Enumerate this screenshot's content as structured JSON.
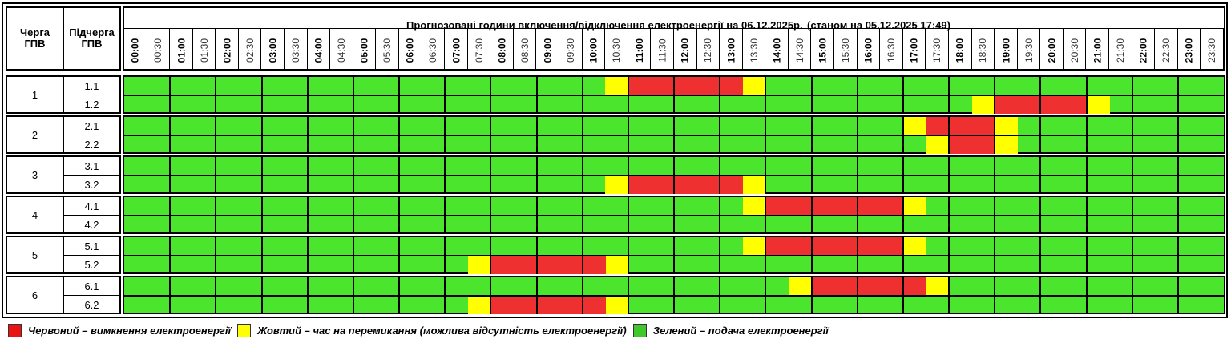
{
  "header": {
    "queue_label": "Черга ГПВ",
    "subqueue_label": "Підчерга ГПВ",
    "title": "Прогнозовані години включення/відключення електроенергії на 06.12.2025р.",
    "as_of": "(станом на 05.12.2025 17:49)"
  },
  "time_slots": [
    "00:00",
    "00:30",
    "01:00",
    "01:30",
    "02:00",
    "02:30",
    "03:00",
    "03:30",
    "04:00",
    "04:30",
    "05:00",
    "05:30",
    "06:00",
    "06:30",
    "07:00",
    "07:30",
    "08:00",
    "08:30",
    "09:00",
    "09:30",
    "10:00",
    "10:30",
    "11:00",
    "11:30",
    "12:00",
    "12:30",
    "13:00",
    "13:30",
    "14:00",
    "14:30",
    "15:00",
    "15:30",
    "16:00",
    "16:30",
    "17:00",
    "17:30",
    "18:00",
    "18:30",
    "19:00",
    "19:30",
    "20:00",
    "20:30",
    "21:00",
    "21:30",
    "22:00",
    "22:30",
    "23:00",
    "23:30"
  ],
  "colors": {
    "red": "#ef3030",
    "yellow": "#ffff00",
    "green": "#4ce52e"
  },
  "groups": [
    {
      "queue": "1",
      "subqueues": [
        {
          "label": "1.1",
          "yellow": [
            21,
            27
          ],
          "red": [
            22,
            23,
            24,
            25,
            26
          ]
        },
        {
          "label": "1.2",
          "yellow": [
            37,
            42
          ],
          "red": [
            38,
            39,
            40,
            41
          ]
        }
      ]
    },
    {
      "queue": "2",
      "subqueues": [
        {
          "label": "2.1",
          "yellow": [
            34,
            38
          ],
          "red": [
            35,
            36,
            37
          ]
        },
        {
          "label": "2.2",
          "yellow": [
            35,
            38
          ],
          "red": [
            36,
            37
          ]
        }
      ]
    },
    {
      "queue": "3",
      "subqueues": [
        {
          "label": "3.1",
          "yellow": [],
          "red": []
        },
        {
          "label": "3.2",
          "yellow": [
            21,
            27
          ],
          "red": [
            22,
            23,
            24,
            25,
            26
          ]
        }
      ]
    },
    {
      "queue": "4",
      "subqueues": [
        {
          "label": "4.1",
          "yellow": [
            27,
            34
          ],
          "red": [
            28,
            29,
            30,
            31,
            32,
            33
          ]
        },
        {
          "label": "4.2",
          "yellow": [],
          "red": []
        }
      ]
    },
    {
      "queue": "5",
      "subqueues": [
        {
          "label": "5.1",
          "yellow": [
            27,
            34
          ],
          "red": [
            28,
            29,
            30,
            31,
            32,
            33
          ]
        },
        {
          "label": "5.2",
          "yellow": [
            15,
            21
          ],
          "red": [
            16,
            17,
            18,
            19,
            20
          ]
        }
      ]
    },
    {
      "queue": "6",
      "subqueues": [
        {
          "label": "6.1",
          "yellow": [
            29,
            35
          ],
          "red": [
            30,
            31,
            32,
            33,
            34
          ]
        },
        {
          "label": "6.2",
          "yellow": [
            15,
            21
          ],
          "red": [
            16,
            17,
            18,
            19,
            20
          ]
        }
      ]
    }
  ],
  "legend": {
    "red_label": "Червоний – вимкнення електроенергії",
    "yellow_label": "Жовтий – час на перемикання (можлива відсутність електроенергії)",
    "green_label": "Зелений – подача електроенергії"
  }
}
